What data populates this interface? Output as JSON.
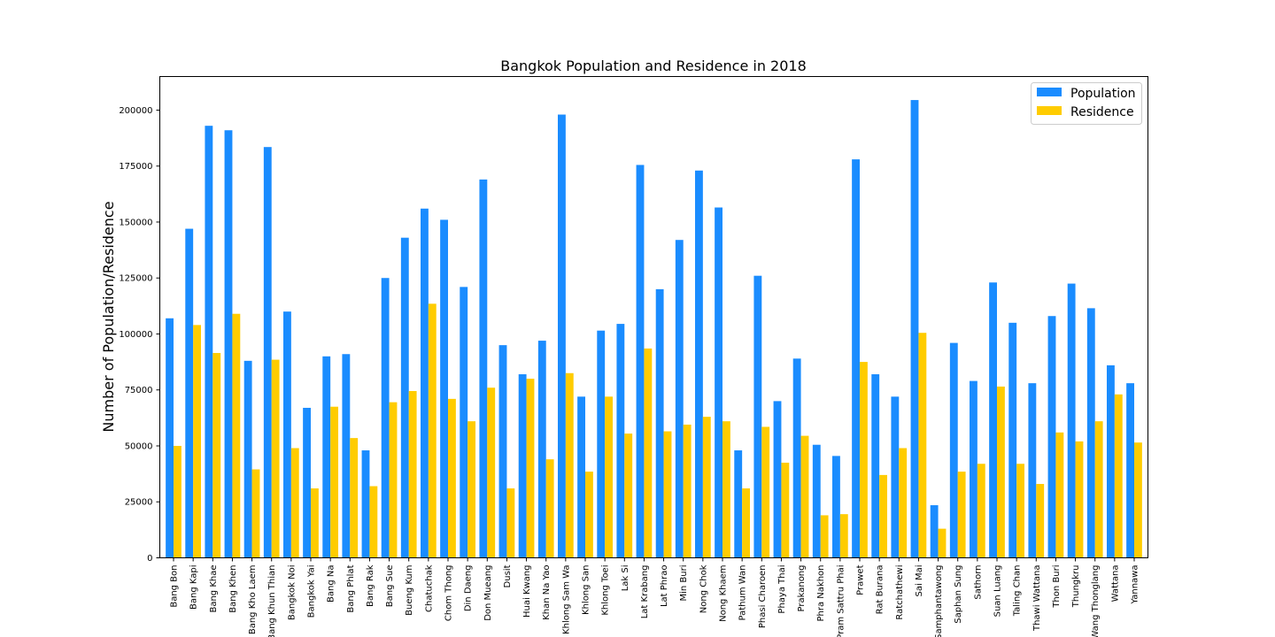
{
  "chart_data": {
    "type": "bar",
    "title": "Bangkok Population and Residence in 2018",
    "xlabel": "",
    "ylabel": "Number of Population/Residence",
    "ylim": [
      0,
      215000
    ],
    "yticks": [
      0,
      25000,
      50000,
      75000,
      100000,
      125000,
      150000,
      175000,
      200000
    ],
    "legend_position": "top-right",
    "grid": false,
    "categories": [
      "Bang Bon",
      "Bang Kapi",
      "Bang Khae",
      "Bang Khen",
      "Bang Kho Laem",
      "Bang Khun Thian",
      "Bangkok Noi",
      "Bangkok Yai",
      "Bang Na",
      "Bang Phlat",
      "Bang Rak",
      "Bang Sue",
      "Bueng Kum",
      "Chatuchak",
      "Chom Thong",
      "Din Daeng",
      "Don Mueang",
      "Dusit",
      "Huai Kwang",
      "Khan Na Yao",
      "Khlong Sam Wa",
      "Khlong San",
      "Khlong Toei",
      "Lak Si",
      "Lat Krabang",
      "Lat Phrao",
      "Min Buri",
      "Nong Chok",
      "Nong Khaem",
      "Pathum Wan",
      "Phasi Charoen",
      "Phaya Thai",
      "Prakanong",
      "Phra Nakhon",
      "Pram Sattru Phai",
      "Prawet",
      "Rat Burana",
      "Ratchathewi",
      "Sai Mai",
      "Samphantawong",
      "Saphan Sung",
      "Sathorn",
      "Suan Luang",
      "Taling Chan",
      "Thawi Wattana",
      "Thon Buri",
      "Thungkru",
      "Wang Thonglang",
      "Wattana",
      "Yannawa"
    ],
    "series": [
      {
        "name": "Population",
        "color": "#1a8cff",
        "values": [
          107000,
          147000,
          193000,
          191000,
          88000,
          183500,
          110000,
          67000,
          90000,
          91000,
          48000,
          125000,
          143000,
          156000,
          151000,
          121000,
          169000,
          95000,
          82000,
          97000,
          198000,
          72000,
          101500,
          104500,
          175500,
          120000,
          142000,
          173000,
          156500,
          48000,
          126000,
          70000,
          89000,
          50500,
          45500,
          178000,
          82000,
          72000,
          204500,
          23500,
          96000,
          79000,
          123000,
          105000,
          78000,
          108000,
          122500,
          111500,
          86000,
          78000
        ]
      },
      {
        "name": "Residence",
        "color": "#ffcc00",
        "values": [
          50000,
          104000,
          91500,
          109000,
          39500,
          88500,
          49000,
          31000,
          67500,
          53500,
          32000,
          69500,
          74500,
          113500,
          71000,
          61000,
          76000,
          31000,
          80000,
          44000,
          82500,
          38500,
          72000,
          55500,
          93500,
          56500,
          59500,
          63000,
          61000,
          31000,
          58500,
          42500,
          54500,
          19000,
          19500,
          87500,
          37000,
          49000,
          100500,
          13000,
          38500,
          42000,
          76500,
          42000,
          33000,
          56000,
          52000,
          61000,
          73000,
          51500
        ]
      }
    ]
  }
}
